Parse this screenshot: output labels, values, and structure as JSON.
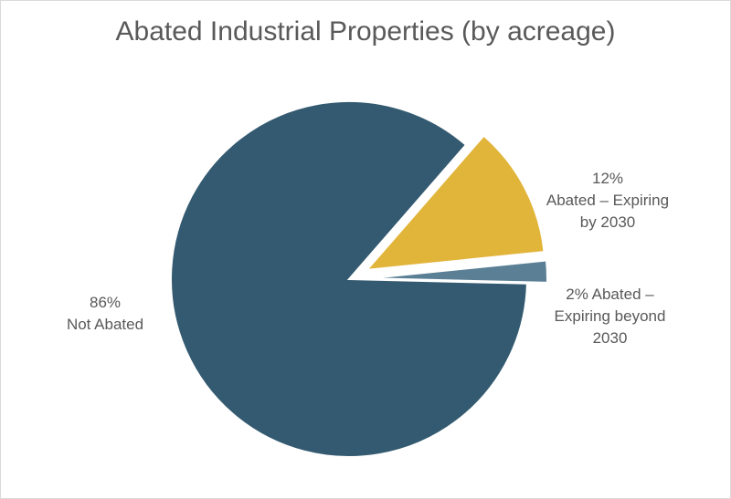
{
  "chart_data": {
    "type": "pie",
    "title": "Abated Industrial Properties (by acreage)",
    "slices": [
      {
        "label": "Abated – Expiring by 2030",
        "value": 12,
        "value_label": "12%",
        "label_lines": [
          "Abated – Expiring",
          "by 2030"
        ],
        "color": "#e1b43a",
        "exploded": true
      },
      {
        "label": "Abated – Expiring beyond 2030",
        "value": 2,
        "value_label": "2%",
        "label_lines": [
          "2% Abated –",
          "Expiring beyond",
          "2030"
        ],
        "color": "#5b8096",
        "exploded": true
      },
      {
        "label": "Not Abated",
        "value": 86,
        "value_label": "86%",
        "label_lines": [
          "Not Abated"
        ],
        "color": "#335a70",
        "exploded": false
      }
    ],
    "legend": "none"
  }
}
